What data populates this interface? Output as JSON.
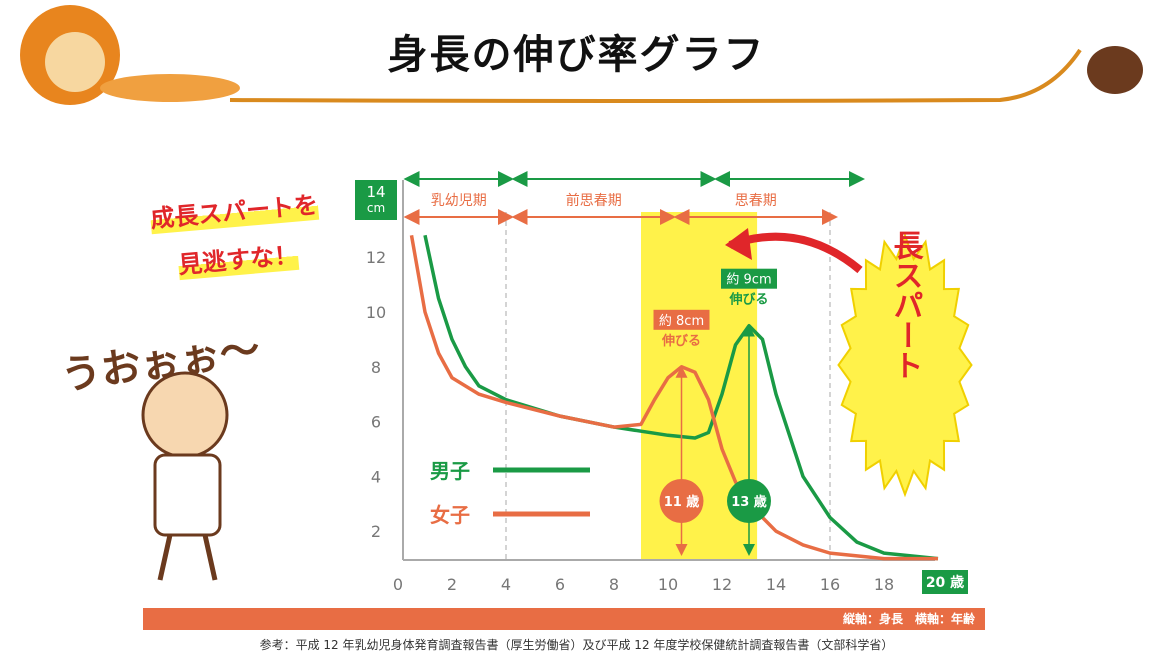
{
  "title": "身長の伸び率グラフ",
  "slogan": [
    "成長スパートを",
    "見逃すな！"
  ],
  "shout": "うおぉぉ〜",
  "burst_label": "成長スパート",
  "axes_caption": "縦軸：身長　横軸：年齢",
  "source": "参考：平成 12 年乳幼児身体発育調査報告書（厚生労働省）及び平成 12 年度学校保健統計調査報告書（文部科学省）",
  "colors": {
    "boys": "#1a9a45",
    "girls": "#e86d44",
    "highlight": "#fff24a",
    "arrow": "#e0262a"
  },
  "chart_data": {
    "type": "line",
    "y_unit": "14\ncm",
    "x_unit": "20 歳",
    "xlim": [
      0,
      20
    ],
    "ylim": [
      0,
      14
    ],
    "x_ticks": [
      "0",
      "2",
      "4",
      "6",
      "8",
      "10",
      "12",
      "14",
      "16",
      "18"
    ],
    "y_ticks": [
      "2",
      "4",
      "6",
      "8",
      "10",
      "12"
    ],
    "phases_boys": [
      [
        0.5,
        4
      ],
      [
        4.5,
        11.5
      ],
      [
        12,
        17
      ]
    ],
    "phases_girls": [
      {
        "label": "乳幼児期",
        "range": [
          0.5,
          4
        ]
      },
      {
        "label": "前思春期",
        "range": [
          4.5,
          10
        ]
      },
      {
        "label": "思春期",
        "range": [
          10.5,
          16
        ]
      }
    ],
    "highlight_range": [
      9,
      13.3
    ],
    "dividers": [
      4,
      16
    ],
    "series": [
      {
        "name": "男子",
        "color": "#1a9a45",
        "x": [
          1,
          1.5,
          2,
          2.5,
          3,
          4,
          6,
          8,
          10,
          11,
          11.5,
          12,
          12.5,
          13,
          13.5,
          14,
          15,
          16,
          17,
          18,
          19,
          20
        ],
        "y": [
          12.8,
          10.5,
          9,
          8,
          7.3,
          6.8,
          6.2,
          5.8,
          5.5,
          5.4,
          5.6,
          7,
          8.8,
          9.5,
          9,
          7,
          4,
          2.5,
          1.6,
          1.2,
          1.1,
          1.0
        ]
      },
      {
        "name": "女子",
        "color": "#e86d44",
        "x": [
          0.5,
          1,
          1.5,
          2,
          3,
          4,
          6,
          8,
          9,
          9.5,
          10,
          10.5,
          11,
          11.5,
          12,
          12.5,
          13,
          14,
          15,
          16,
          18,
          20
        ],
        "y": [
          12.8,
          10,
          8.5,
          7.6,
          7,
          6.7,
          6.2,
          5.8,
          5.9,
          6.8,
          7.6,
          8,
          7.8,
          6.8,
          5,
          3.8,
          3,
          2,
          1.5,
          1.2,
          1.0,
          1.0
        ]
      }
    ],
    "annotations": [
      {
        "badge": "約 8cm",
        "text": "伸びる",
        "x": 10.5,
        "y": 8,
        "age": "11 歳",
        "color": "#e86d44"
      },
      {
        "badge": "約 9cm",
        "text": "伸びる",
        "x": 13,
        "y": 9.5,
        "age": "13 歳",
        "color": "#1a9a45"
      }
    ]
  }
}
